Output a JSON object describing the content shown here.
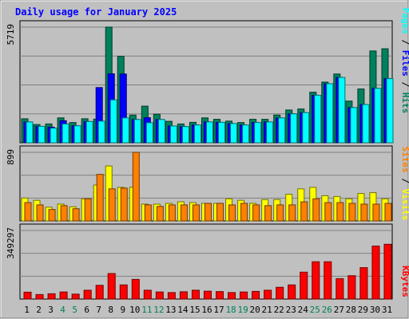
{
  "chart_data": {
    "type": "bar",
    "title": "Daily usage for January 2025",
    "categories": [
      "1",
      "2",
      "3",
      "4",
      "5",
      "6",
      "7",
      "8",
      "9",
      "10",
      "11",
      "12",
      "13",
      "14",
      "15",
      "16",
      "17",
      "18",
      "19",
      "20",
      "21",
      "22",
      "23",
      "24",
      "25",
      "26",
      "27",
      "28",
      "29",
      "30",
      "31"
    ],
    "weekend_days": [
      "4",
      "5",
      "11",
      "12",
      "18",
      "19",
      "25",
      "26"
    ],
    "top_panel": {
      "axis_max_label": "5719",
      "ylim": [
        0,
        5719
      ],
      "legend": [
        "Pages",
        "Files",
        "Hits"
      ],
      "series": [
        {
          "name": "Hits",
          "color": "#00805c",
          "values": [
            1185,
            900,
            930,
            1230,
            1000,
            1185,
            1170,
            5719,
            4270,
            1370,
            1810,
            1410,
            1060,
            930,
            1010,
            1230,
            1160,
            1070,
            1000,
            1160,
            1160,
            1370,
            1620,
            1670,
            2500,
            3000,
            3400,
            2060,
            2660,
            4540,
            4650
          ]
        },
        {
          "name": "Files",
          "color": "#0000ff",
          "values": [
            1030,
            810,
            770,
            1090,
            840,
            1050,
            2730,
            3410,
            3400,
            1150,
            1240,
            1150,
            830,
            800,
            880,
            1030,
            1010,
            950,
            880,
            1000,
            1030,
            1230,
            1430,
            1490,
            2350,
            2920,
            3230,
            1740,
            1890,
            2690,
            3170
          ]
        },
        {
          "name": "Pages",
          "color": "#00ffff",
          "values": [
            1030,
            810,
            720,
            930,
            840,
            1050,
            1070,
            2120,
            1230,
            1150,
            990,
            1150,
            830,
            800,
            880,
            1030,
            1010,
            950,
            880,
            1000,
            1030,
            1230,
            1430,
            1490,
            2350,
            2920,
            3230,
            1740,
            1890,
            2690,
            3170
          ]
        }
      ]
    },
    "middle_panel": {
      "axis_max_label": "899",
      "ylim": [
        0,
        899
      ],
      "legend": [
        "Sites",
        "Visits"
      ],
      "series": [
        {
          "name": "Visits",
          "color": "#ffff00",
          "values": [
            300,
            270,
            180,
            220,
            185,
            290,
            470,
            720,
            440,
            440,
            220,
            220,
            230,
            250,
            240,
            230,
            230,
            290,
            270,
            230,
            280,
            280,
            350,
            420,
            440,
            330,
            320,
            290,
            360,
            370,
            290
          ]
        },
        {
          "name": "Sites",
          "color": "#ff8000",
          "values": [
            240,
            210,
            150,
            200,
            160,
            290,
            610,
            420,
            430,
            899,
            210,
            190,
            210,
            210,
            210,
            230,
            230,
            210,
            230,
            210,
            200,
            210,
            210,
            250,
            290,
            240,
            240,
            230,
            220,
            220,
            230
          ]
        }
      ]
    },
    "bottom_panel": {
      "axis_max_label": "349297",
      "ylim": [
        0,
        349297
      ],
      "legend": [
        "KBytes"
      ],
      "series": [
        {
          "name": "KBytes",
          "color": "#ff0000",
          "values": [
            35000,
            23000,
            27000,
            36000,
            25000,
            45000,
            70000,
            130000,
            72000,
            100000,
            45000,
            36000,
            33000,
            37000,
            45000,
            40000,
            38000,
            33000,
            36000,
            39000,
            45000,
            60000,
            72000,
            137000,
            190000,
            190000,
            104000,
            119000,
            160000,
            270000,
            279000
          ]
        }
      ]
    }
  }
}
